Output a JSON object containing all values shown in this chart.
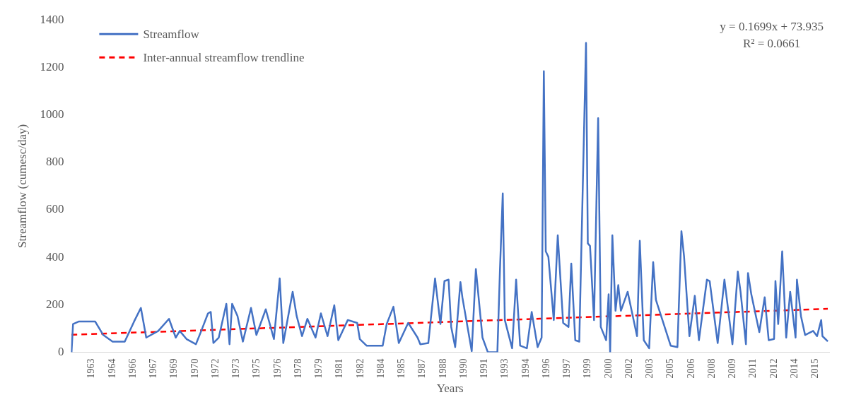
{
  "chart_data": {
    "type": "line",
    "xlabel": "Years",
    "ylabel": "Streamflow (cumesc/day)",
    "annotations": [
      "y = 0.1699x + 73.935",
      "R² = 0.0661"
    ],
    "xlim": [
      1961.5,
      2016.5
    ],
    "xticks": [
      {
        "value": 1963,
        "label": "1963"
      },
      {
        "value": 1964.5,
        "label": "1964"
      },
      {
        "value": 1966,
        "label": "1966"
      },
      {
        "value": 1967.5,
        "label": "1967"
      },
      {
        "value": 1969,
        "label": "1969"
      },
      {
        "value": 1970.5,
        "label": "1970"
      },
      {
        "value": 1972,
        "label": "1972"
      },
      {
        "value": 1973.5,
        "label": "1973"
      },
      {
        "value": 1975,
        "label": "1975"
      },
      {
        "value": 1976.5,
        "label": "1976"
      },
      {
        "value": 1978,
        "label": "1978"
      },
      {
        "value": 1979.5,
        "label": "1979"
      },
      {
        "value": 1981,
        "label": "1981"
      },
      {
        "value": 1982.5,
        "label": "1982"
      },
      {
        "value": 1984,
        "label": "1984"
      },
      {
        "value": 1985.5,
        "label": "1985"
      },
      {
        "value": 1987,
        "label": "1987"
      },
      {
        "value": 1988.5,
        "label": "1988"
      },
      {
        "value": 1990,
        "label": "1990"
      },
      {
        "value": 1991.5,
        "label": "1991"
      },
      {
        "value": 1993,
        "label": "1993"
      },
      {
        "value": 1994.5,
        "label": "1994"
      },
      {
        "value": 1996,
        "label": "1996"
      },
      {
        "value": 1997.5,
        "label": "1997"
      },
      {
        "value": 1999,
        "label": "1999"
      },
      {
        "value": 2000.5,
        "label": "2000"
      },
      {
        "value": 2002,
        "label": "2002"
      },
      {
        "value": 2003.5,
        "label": "2003"
      },
      {
        "value": 2005,
        "label": "2005"
      },
      {
        "value": 2006.5,
        "label": "2006"
      },
      {
        "value": 2008,
        "label": "2008"
      },
      {
        "value": 2009.5,
        "label": "2009"
      },
      {
        "value": 2011,
        "label": "2011"
      },
      {
        "value": 2012.5,
        "label": "2012"
      },
      {
        "value": 2014,
        "label": "2014"
      },
      {
        "value": 2015.5,
        "label": "2015"
      }
    ],
    "ylim": [
      0,
      1400
    ],
    "yticks": [
      0,
      200,
      400,
      600,
      800,
      1000,
      1200,
      1400
    ],
    "grid": false,
    "legend": "top left",
    "marker": "none",
    "series": [
      {
        "name": "Streamflow",
        "color": "#4472c4",
        "line_style": "solid",
        "x": [
          1961.54,
          1961.65,
          1962.08,
          1963.25,
          1963.84,
          1964.52,
          1965.4,
          1966.08,
          1966.57,
          1966.96,
          1967.83,
          1968.61,
          1969.1,
          1969.39,
          1969.88,
          1970.56,
          1970.95,
          1971.44,
          1971.64,
          1971.83,
          1972.22,
          1972.77,
          1973.0,
          1973.19,
          1973.58,
          1973.97,
          1974.56,
          1974.95,
          1975.63,
          1976.22,
          1976.64,
          1976.9,
          1977.58,
          1977.87,
          1978.26,
          1978.65,
          1979.24,
          1979.63,
          1980.11,
          1980.6,
          1980.89,
          1981.58,
          1982.26,
          1982.45,
          1982.94,
          1984.11,
          1984.4,
          1984.89,
          1985.28,
          1985.96,
          1986.64,
          1986.84,
          1987.42,
          1987.91,
          1988.3,
          1988.59,
          1988.89,
          1989.08,
          1989.37,
          1989.75,
          1989.89,
          1990.57,
          1990.87,
          1991.35,
          1991.74,
          1992.43,
          1992.62,
          1992.82,
          1992.97,
          1993.5,
          1993.79,
          1994.08,
          1994.57,
          1994.92,
          1995.35,
          1995.64,
          1995.8,
          1995.94,
          1996.13,
          1996.52,
          1996.81,
          1997.2,
          1997.59,
          1997.79,
          1998.08,
          1998.37,
          1998.86,
          1998.99,
          1999.15,
          1999.44,
          1999.74,
          1999.93,
          2000.32,
          2000.5,
          2000.61,
          2000.77,
          2001.0,
          2001.2,
          2001.39,
          2001.88,
          2002.56,
          2002.76,
          2003.05,
          2003.44,
          2003.73,
          2003.93,
          2005.0,
          2005.49,
          2005.78,
          2005.97,
          2006.36,
          2006.75,
          2007.05,
          2007.63,
          2007.83,
          2008.41,
          2008.9,
          2009.48,
          2009.87,
          2010.07,
          2010.46,
          2010.61,
          2010.85,
          2011.43,
          2011.82,
          2012.11,
          2012.5,
          2012.6,
          2012.8,
          2013.09,
          2013.38,
          2013.67,
          2014.06,
          2014.16,
          2014.45,
          2014.75,
          2015.33,
          2015.62,
          2015.92,
          2016.01,
          2016.4
        ],
        "values": [
          0,
          119,
          130,
          130,
          73,
          45,
          45,
          130,
          187,
          62,
          90,
          141,
          62,
          90,
          56,
          34,
          90,
          164,
          170,
          39,
          62,
          204,
          34,
          204,
          153,
          45,
          187,
          73,
          181,
          56,
          311,
          39,
          255,
          153,
          68,
          141,
          62,
          164,
          68,
          198,
          51,
          136,
          124,
          56,
          28,
          28,
          119,
          192,
          39,
          124,
          62,
          34,
          39,
          311,
          119,
          300,
          306,
          107,
          22,
          296,
          232,
          5,
          351,
          62,
          0,
          0,
          351,
          669,
          136,
          17,
          306,
          28,
          17,
          170,
          22,
          62,
          1184,
          425,
          402,
          136,
          493,
          124,
          107,
          374,
          51,
          45,
          1303,
          459,
          448,
          136,
          986,
          107,
          51,
          244,
          0,
          493,
          175,
          283,
          175,
          255,
          68,
          470,
          51,
          17,
          380,
          221,
          28,
          22,
          510,
          405,
          68,
          238,
          51,
          306,
          300,
          39,
          306,
          34,
          340,
          255,
          34,
          334,
          244,
          85,
          232,
          51,
          56,
          300,
          119,
          425,
          62,
          255,
          62,
          306,
          153,
          73,
          90,
          68,
          136,
          68,
          46
        ]
      },
      {
        "name": "Inter-annual streamflow trendline",
        "color": "#ff0000",
        "line_style": "dashed",
        "x": [
          1961.54,
          2016.4
        ],
        "values": [
          74,
          183
        ]
      }
    ]
  }
}
